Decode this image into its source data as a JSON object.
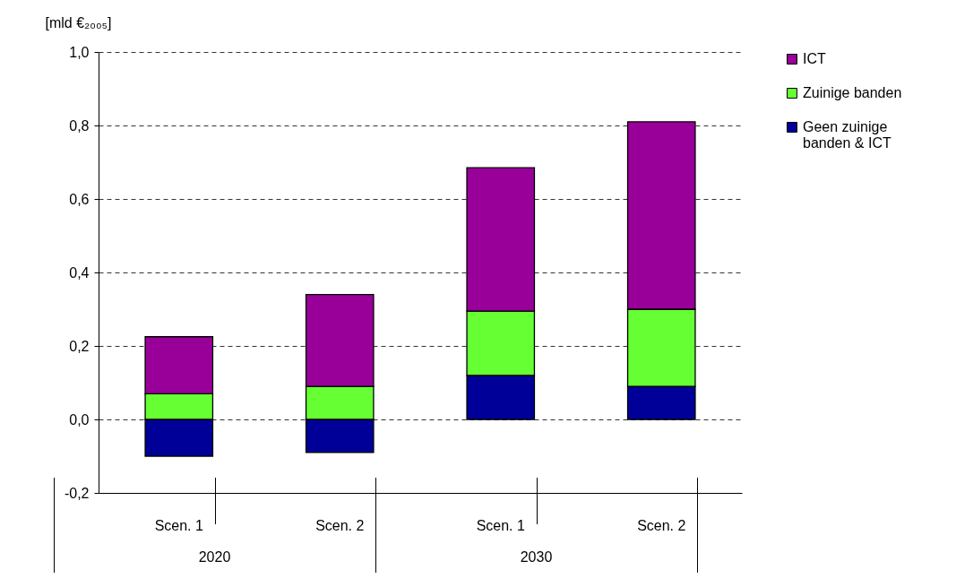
{
  "chart_data": {
    "type": "bar",
    "stacked": true,
    "ylabel": "[mld €₂₀₀₅]",
    "categories": [
      "Scen. 1",
      "Scen. 2",
      "Scen. 1",
      "Scen. 2"
    ],
    "annotations": [
      "2020",
      "2030"
    ],
    "series": [
      {
        "name": "Geen zuinige banden & ICT",
        "color": "#000099",
        "values": [
          -0.1,
          -0.09,
          0.12,
          0.09
        ]
      },
      {
        "name": "Zuinige banden",
        "color": "#66ff33",
        "values": [
          0.07,
          0.09,
          0.175,
          0.21
        ]
      },
      {
        "name": "ICT",
        "color": "#990099",
        "values": [
          0.155,
          0.25,
          0.39,
          0.51
        ]
      }
    ],
    "ylim": [
      -0.2,
      1.0
    ],
    "yticks": [
      {
        "value": -0.2,
        "label": "-0,2"
      },
      {
        "value": 0,
        "label": "0,0"
      },
      {
        "value": 0.2,
        "label": "0,2"
      },
      {
        "value": 0.4,
        "label": "0,4"
      },
      {
        "value": 0.6,
        "label": "0,6"
      },
      {
        "value": 0.8,
        "label": "0,8"
      },
      {
        "value": 1.0,
        "label": "1,0"
      }
    ],
    "grid": "y",
    "legend": "right"
  }
}
